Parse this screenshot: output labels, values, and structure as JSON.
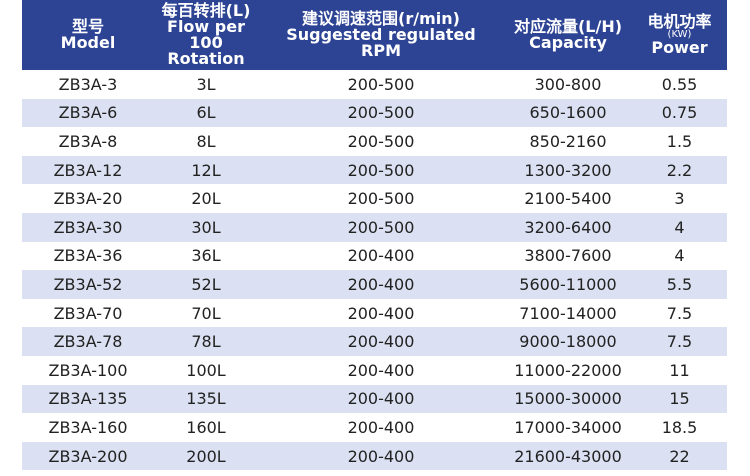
{
  "table": {
    "header": [
      [
        "型号",
        "Model"
      ],
      [
        "每百转排(L)",
        "Flow per 100",
        "Rotation"
      ],
      [
        "建议调速范围(r/min)",
        "Suggested regulated",
        "RPM"
      ],
      [
        "对应流量(L/H)",
        "Capacity"
      ],
      [
        "电机功率",
        "(KW)",
        "Power"
      ]
    ],
    "rows": [
      [
        "ZB3A-3",
        "3L",
        "200-500",
        "300-800",
        "0.55"
      ],
      [
        "ZB3A-6",
        "6L",
        "200-500",
        "650-1600",
        "0.75"
      ],
      [
        "ZB3A-8",
        "8L",
        "200-500",
        "850-2160",
        "1.5"
      ],
      [
        "ZB3A-12",
        "12L",
        "200-500",
        "1300-3200",
        "2.2"
      ],
      [
        "ZB3A-20",
        "20L",
        "200-500",
        "2100-5400",
        "3"
      ],
      [
        "ZB3A-30",
        "30L",
        "200-500",
        "3200-6400",
        "4"
      ],
      [
        "ZB3A-36",
        "36L",
        "200-400",
        "3800-7600",
        "4"
      ],
      [
        "ZB3A-52",
        "52L",
        "200-400",
        "5600-11000",
        "5.5"
      ],
      [
        "ZB3A-70",
        "70L",
        "200-400",
        "7100-14000",
        "7.5"
      ],
      [
        "ZB3A-78",
        "78L",
        "200-400",
        "9000-18000",
        "7.5"
      ],
      [
        "ZB3A-100",
        "100L",
        "200-400",
        "11000-22000",
        "11"
      ],
      [
        "ZB3A-135",
        "135L",
        "200-400",
        "15000-30000",
        "15"
      ],
      [
        "ZB3A-160",
        "160L",
        "200-400",
        "17000-34000",
        "18.5"
      ],
      [
        "ZB3A-200",
        "200L",
        "200-400",
        "21600-43000",
        "22"
      ]
    ]
  }
}
